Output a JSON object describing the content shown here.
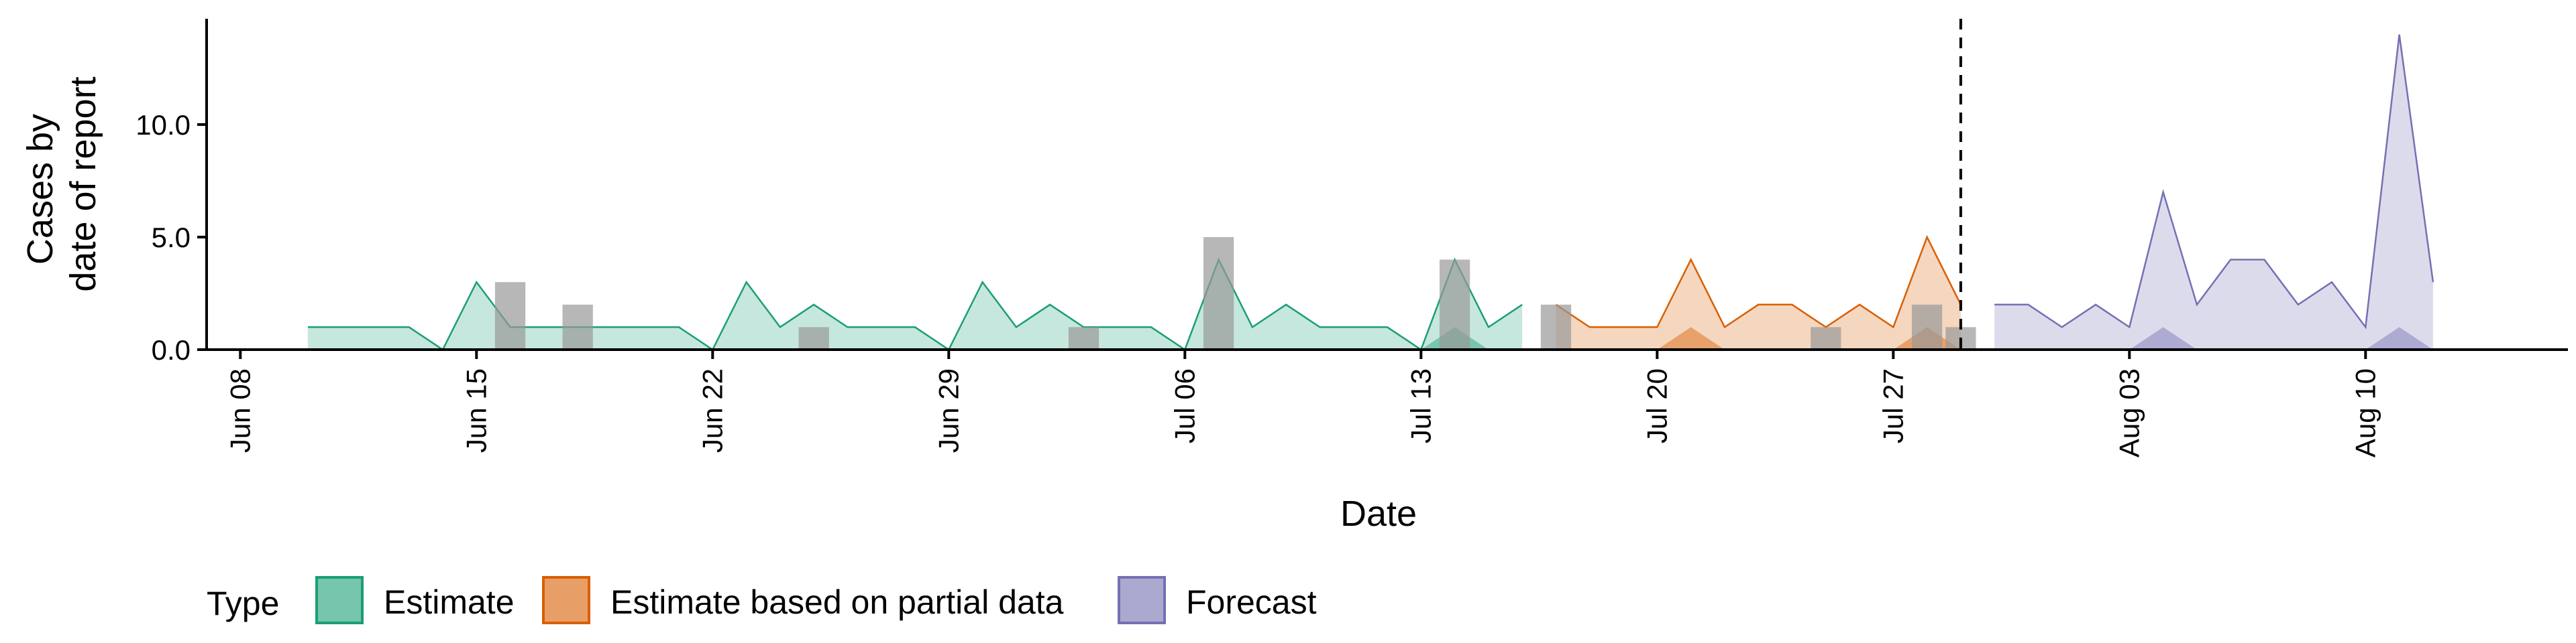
{
  "chart_data": {
    "type": "area",
    "x_label": "Date",
    "y_label_lines": [
      "Cases by",
      "date of report"
    ],
    "y_range": [
      0,
      14.7
    ],
    "x_range": [
      "2021-06-07",
      "2021-08-16"
    ],
    "y_ticks": [
      0,
      5,
      10
    ],
    "y_tick_labels": [
      "0.0",
      "5.0",
      "10.0"
    ],
    "x_ticks": [
      "2021-06-08",
      "2021-06-15",
      "2021-06-22",
      "2021-06-29",
      "2021-07-06",
      "2021-07-13",
      "2021-07-20",
      "2021-07-27",
      "2021-08-03",
      "2021-08-10"
    ],
    "x_tick_labels": [
      "Jun 08",
      "Jun 15",
      "Jun 22",
      "Jun 29",
      "Jul 06",
      "Jul 13",
      "Jul 20",
      "Jul 27",
      "Aug 03",
      "Aug 10"
    ],
    "vline_date": "2021-07-29",
    "grid": false,
    "legend": {
      "title": "Type",
      "position": "bottom",
      "entries": [
        "Estimate",
        "Estimate based on partial data",
        "Forecast"
      ]
    },
    "colors": {
      "Estimate": {
        "fill": "#1b9e77",
        "line": "#1b9e77"
      },
      "Estimate based on partial data": {
        "fill": "#d95f02",
        "line": "#d95f02"
      },
      "Forecast": {
        "fill": "#7570b3",
        "line": "#7570b3"
      },
      "observed": "#999999",
      "vline": "#000000"
    },
    "series": [
      {
        "name": "Estimate",
        "x": [
          "2021-06-10",
          "2021-06-11",
          "2021-06-12",
          "2021-06-13",
          "2021-06-14",
          "2021-06-15",
          "2021-06-16",
          "2021-06-17",
          "2021-06-18",
          "2021-06-19",
          "2021-06-20",
          "2021-06-21",
          "2021-06-22",
          "2021-06-23",
          "2021-06-24",
          "2021-06-25",
          "2021-06-26",
          "2021-06-27",
          "2021-06-28",
          "2021-06-29",
          "2021-06-30",
          "2021-07-01",
          "2021-07-02",
          "2021-07-03",
          "2021-07-04",
          "2021-07-05",
          "2021-07-06",
          "2021-07-07",
          "2021-07-08",
          "2021-07-09",
          "2021-07-10",
          "2021-07-11",
          "2021-07-12",
          "2021-07-13",
          "2021-07-14",
          "2021-07-15",
          "2021-07-16"
        ],
        "upper": [
          1,
          1,
          1,
          1,
          0,
          3,
          1,
          1,
          1,
          1,
          1,
          1,
          0,
          3,
          1,
          2,
          1,
          1,
          1,
          0,
          3,
          1,
          2,
          1,
          1,
          1,
          0,
          4,
          1,
          2,
          1,
          1,
          1,
          0,
          4,
          1,
          2
        ],
        "lower": [
          0,
          0,
          0,
          0,
          0,
          0,
          0,
          0,
          0,
          0,
          0,
          0,
          0,
          0,
          0,
          0,
          0,
          0,
          0,
          0,
          0,
          0,
          0,
          0,
          0,
          0,
          0,
          0,
          0,
          0,
          0,
          0,
          0,
          0,
          1,
          0,
          0
        ]
      },
      {
        "name": "Estimate based on partial data",
        "x": [
          "2021-07-17",
          "2021-07-18",
          "2021-07-19",
          "2021-07-20",
          "2021-07-21",
          "2021-07-22",
          "2021-07-23",
          "2021-07-24",
          "2021-07-25",
          "2021-07-26",
          "2021-07-27",
          "2021-07-28",
          "2021-07-29"
        ],
        "upper": [
          2,
          1,
          1,
          1,
          4,
          1,
          2,
          2,
          1,
          2,
          1,
          5,
          2
        ],
        "lower": [
          0,
          0,
          0,
          0,
          1,
          0,
          0,
          0,
          0,
          0,
          0,
          1,
          0
        ]
      },
      {
        "name": "Forecast",
        "x": [
          "2021-07-30",
          "2021-07-31",
          "2021-08-01",
          "2021-08-02",
          "2021-08-03",
          "2021-08-04",
          "2021-08-05",
          "2021-08-06",
          "2021-08-07",
          "2021-08-08",
          "2021-08-09",
          "2021-08-10",
          "2021-08-11",
          "2021-08-12"
        ],
        "upper": [
          2,
          2,
          1,
          2,
          1,
          7,
          2,
          4,
          4,
          2,
          3,
          1,
          14,
          3
        ],
        "lower": [
          0,
          0,
          0,
          0,
          0,
          1,
          0,
          0,
          0,
          0,
          0,
          0,
          1,
          0
        ]
      }
    ],
    "observed": {
      "x": [
        "2021-06-16",
        "2021-06-18",
        "2021-06-25",
        "2021-07-03",
        "2021-07-07",
        "2021-07-14",
        "2021-07-17",
        "2021-07-25",
        "2021-07-28",
        "2021-07-29"
      ],
      "values": [
        3,
        2,
        1,
        1,
        5,
        4,
        2,
        1,
        2,
        1
      ]
    }
  }
}
